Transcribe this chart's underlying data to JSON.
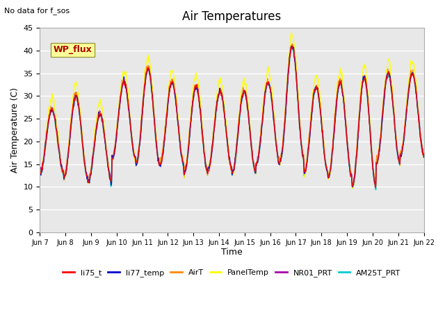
{
  "title": "Air Temperatures",
  "ylabel": "Air Temperature (C)",
  "xlabel": "Time",
  "note": "No data for f_sos",
  "wp_flux_label": "WP_flux",
  "ylim": [
    0,
    45
  ],
  "yticks": [
    0,
    5,
    10,
    15,
    20,
    25,
    30,
    35,
    40,
    45
  ],
  "x_tick_labels": [
    "Jun 7",
    "Jun 8",
    "Jun 9",
    "Jun 10",
    "Jun 11",
    "Jun 12",
    "Jun 13",
    "Jun 14",
    "Jun 15",
    "Jun 16",
    "Jun 17",
    "Jun 18",
    "Jun 19",
    "Jun 20",
    "Jun 21",
    "Jun 22"
  ],
  "series_colors": {
    "li75_t": "#ff0000",
    "li77_temp": "#0000cc",
    "AirT": "#ff8800",
    "PanelTemp": "#ffff00",
    "NR01_PRT": "#aa00aa",
    "AM25T_PRT": "#00cccc"
  },
  "series_order": [
    "AM25T_PRT",
    "NR01_PRT",
    "PanelTemp",
    "AirT",
    "li77_temp",
    "li75_t"
  ],
  "legend_order": [
    "li75_t",
    "li77_temp",
    "AirT",
    "PanelTemp",
    "NR01_PRT",
    "AM25T_PRT"
  ],
  "daily_mins": [
    13,
    12,
    11,
    16,
    15,
    15,
    13,
    14,
    13,
    15,
    16,
    13,
    12,
    10,
    15,
    17
  ],
  "daily_maxs": [
    27,
    30,
    26,
    33,
    36,
    33,
    32,
    31,
    31,
    33,
    41,
    32,
    33,
    34,
    35,
    35
  ],
  "plot_bg_color": "#e8e8e8",
  "grid_color": "#ffffff",
  "n_days": 16,
  "pts_per_day": 48
}
